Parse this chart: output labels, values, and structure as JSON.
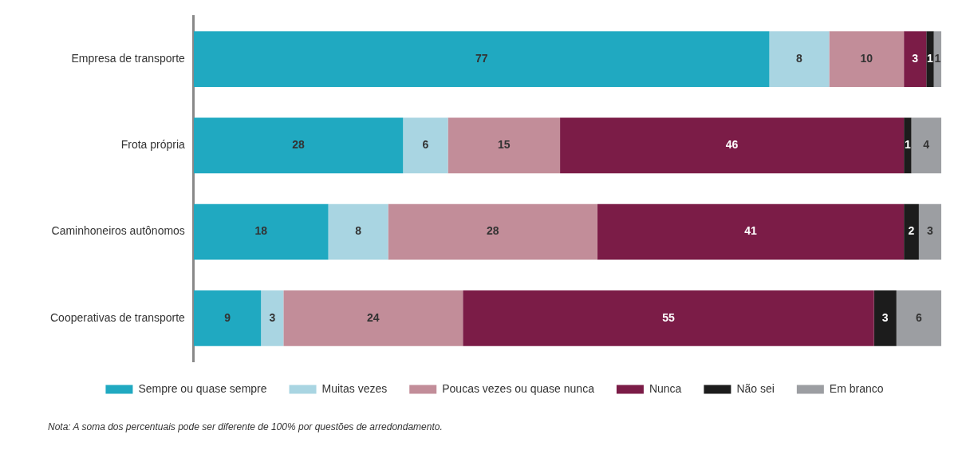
{
  "chart_data": {
    "type": "bar",
    "orientation": "horizontal",
    "stacked": true,
    "categories": [
      "Empresa de transporte",
      "Frota própria",
      "Caminhoneiros autônomos",
      "Cooperativas de transporte"
    ],
    "series": [
      {
        "name": "Sempre ou quase sempre",
        "color": "#20a9c1",
        "values": [
          77,
          28,
          18,
          9
        ]
      },
      {
        "name": "Muitas vezes",
        "color": "#a9d5e2",
        "values": [
          8,
          6,
          8,
          3
        ]
      },
      {
        "name": "Poucas vezes ou quase nunca",
        "color": "#c28d99",
        "values": [
          10,
          15,
          28,
          24
        ]
      },
      {
        "name": "Nunca",
        "color": "#7b1c47",
        "values": [
          3,
          46,
          41,
          55
        ]
      },
      {
        "name": "Não sei",
        "color": "#1c1c1c",
        "values": [
          1,
          1,
          2,
          3
        ]
      },
      {
        "name": "Em branco",
        "color": "#9c9ea2",
        "values": [
          1,
          4,
          3,
          6
        ]
      }
    ],
    "data_labels": true,
    "legend": "bottom",
    "grid": false,
    "tick_labels": "y",
    "annotations": [
      "Nota: A soma dos percentuais pode ser diferente de 100% por questões de arredondamento."
    ]
  }
}
